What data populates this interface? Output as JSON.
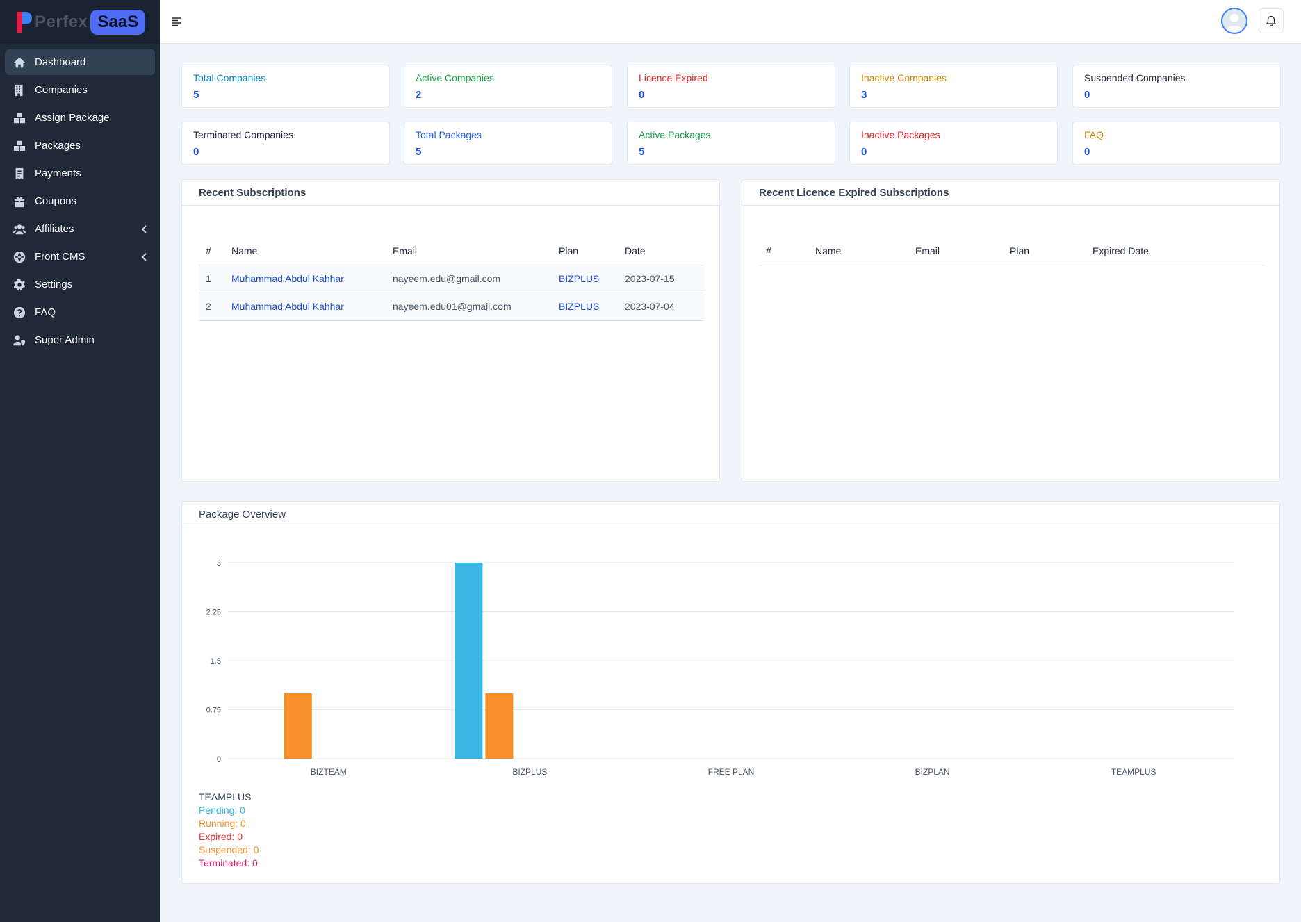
{
  "brand": {
    "name": "Perfex",
    "badge": "SaaS"
  },
  "sidebar": {
    "items": [
      {
        "label": "Dashboard",
        "icon": "home-icon",
        "active": true
      },
      {
        "label": "Companies",
        "icon": "building-icon"
      },
      {
        "label": "Assign Package",
        "icon": "boxes-icon"
      },
      {
        "label": "Packages",
        "icon": "boxes-icon"
      },
      {
        "label": "Payments",
        "icon": "receipt-icon"
      },
      {
        "label": "Coupons",
        "icon": "gift-icon"
      },
      {
        "label": "Affiliates",
        "icon": "users-icon",
        "chevron": true
      },
      {
        "label": "Front CMS",
        "icon": "globe-icon",
        "chevron": true
      },
      {
        "label": "Settings",
        "icon": "gear-icon"
      },
      {
        "label": "FAQ",
        "icon": "question-icon"
      },
      {
        "label": "Super Admin",
        "icon": "user-shield-icon"
      }
    ]
  },
  "stats": [
    {
      "label": "Total Companies",
      "value": "5",
      "color": "#0284c7"
    },
    {
      "label": "Active Companies",
      "value": "2",
      "color": "#16a34a"
    },
    {
      "label": "Licence Expired",
      "value": "0",
      "color": "#dc2626"
    },
    {
      "label": "Inactive Companies",
      "value": "3",
      "color": "#ca8a04"
    },
    {
      "label": "Suspended Companies",
      "value": "0",
      "color": "#1e293b"
    },
    {
      "label": "Terminated Companies",
      "value": "0",
      "color": "#1e293b"
    },
    {
      "label": "Total Packages",
      "value": "5",
      "color": "#2563eb"
    },
    {
      "label": "Active Packages",
      "value": "5",
      "color": "#16a34a"
    },
    {
      "label": "Inactive Packages",
      "value": "0",
      "color": "#dc2626"
    },
    {
      "label": "FAQ",
      "value": "0",
      "color": "#ca8a04"
    }
  ],
  "recent": {
    "title": "Recent Subscriptions",
    "headers": [
      "#",
      "Name",
      "Email",
      "Plan",
      "Date"
    ],
    "rows": [
      [
        "1",
        "Muhammad Abdul Kahhar",
        "nayeem.edu@gmail.com",
        "BIZPLUS",
        "2023-07-15"
      ],
      [
        "2",
        "Muhammad Abdul Kahhar",
        "nayeem.edu01@gmail.com",
        "BIZPLUS",
        "2023-07-04"
      ]
    ]
  },
  "expired": {
    "title": "Recent Licence Expired Subscriptions",
    "headers": [
      "#",
      "Name",
      "Email",
      "Plan",
      "Expired Date"
    ]
  },
  "overview": {
    "title": "Package Overview",
    "tooltip": {
      "title": "TEAMPLUS",
      "lines": [
        {
          "text": "Pending: 0",
          "color": "#38b6e4"
        },
        {
          "text": "Running: 0",
          "color": "#f7902a"
        },
        {
          "text": "Expired: 0",
          "color": "#e5302d"
        },
        {
          "text": "Suspended: 0",
          "color": "#f7902a"
        },
        {
          "text": "Terminated: 0",
          "color": "#e11d74"
        }
      ]
    }
  },
  "chart_data": {
    "type": "bar",
    "title": "Package Overview",
    "categories": [
      "BIZTEAM",
      "BIZPLUS",
      "FREE PLAN",
      "BIZPLAN",
      "TEAMPLUS"
    ],
    "yticks": [
      "0",
      "0.75",
      "1.5",
      "2.25",
      "3"
    ],
    "ylim": [
      0,
      3
    ],
    "grid": true,
    "series": [
      {
        "name": "Pending",
        "color": "#38b6e4",
        "values": [
          0,
          3,
          0,
          0,
          0
        ]
      },
      {
        "name": "Running",
        "color": "#f7902a",
        "values": [
          1,
          1,
          0,
          0,
          0
        ]
      },
      {
        "name": "Expired",
        "color": "#e5302d",
        "values": [
          0,
          0,
          0,
          0,
          0
        ]
      },
      {
        "name": "Suspended",
        "color": "#f7902a",
        "values": [
          0,
          0,
          0,
          0,
          0
        ]
      },
      {
        "name": "Terminated",
        "color": "#e11d74",
        "values": [
          0,
          0,
          0,
          0,
          0
        ]
      }
    ]
  }
}
